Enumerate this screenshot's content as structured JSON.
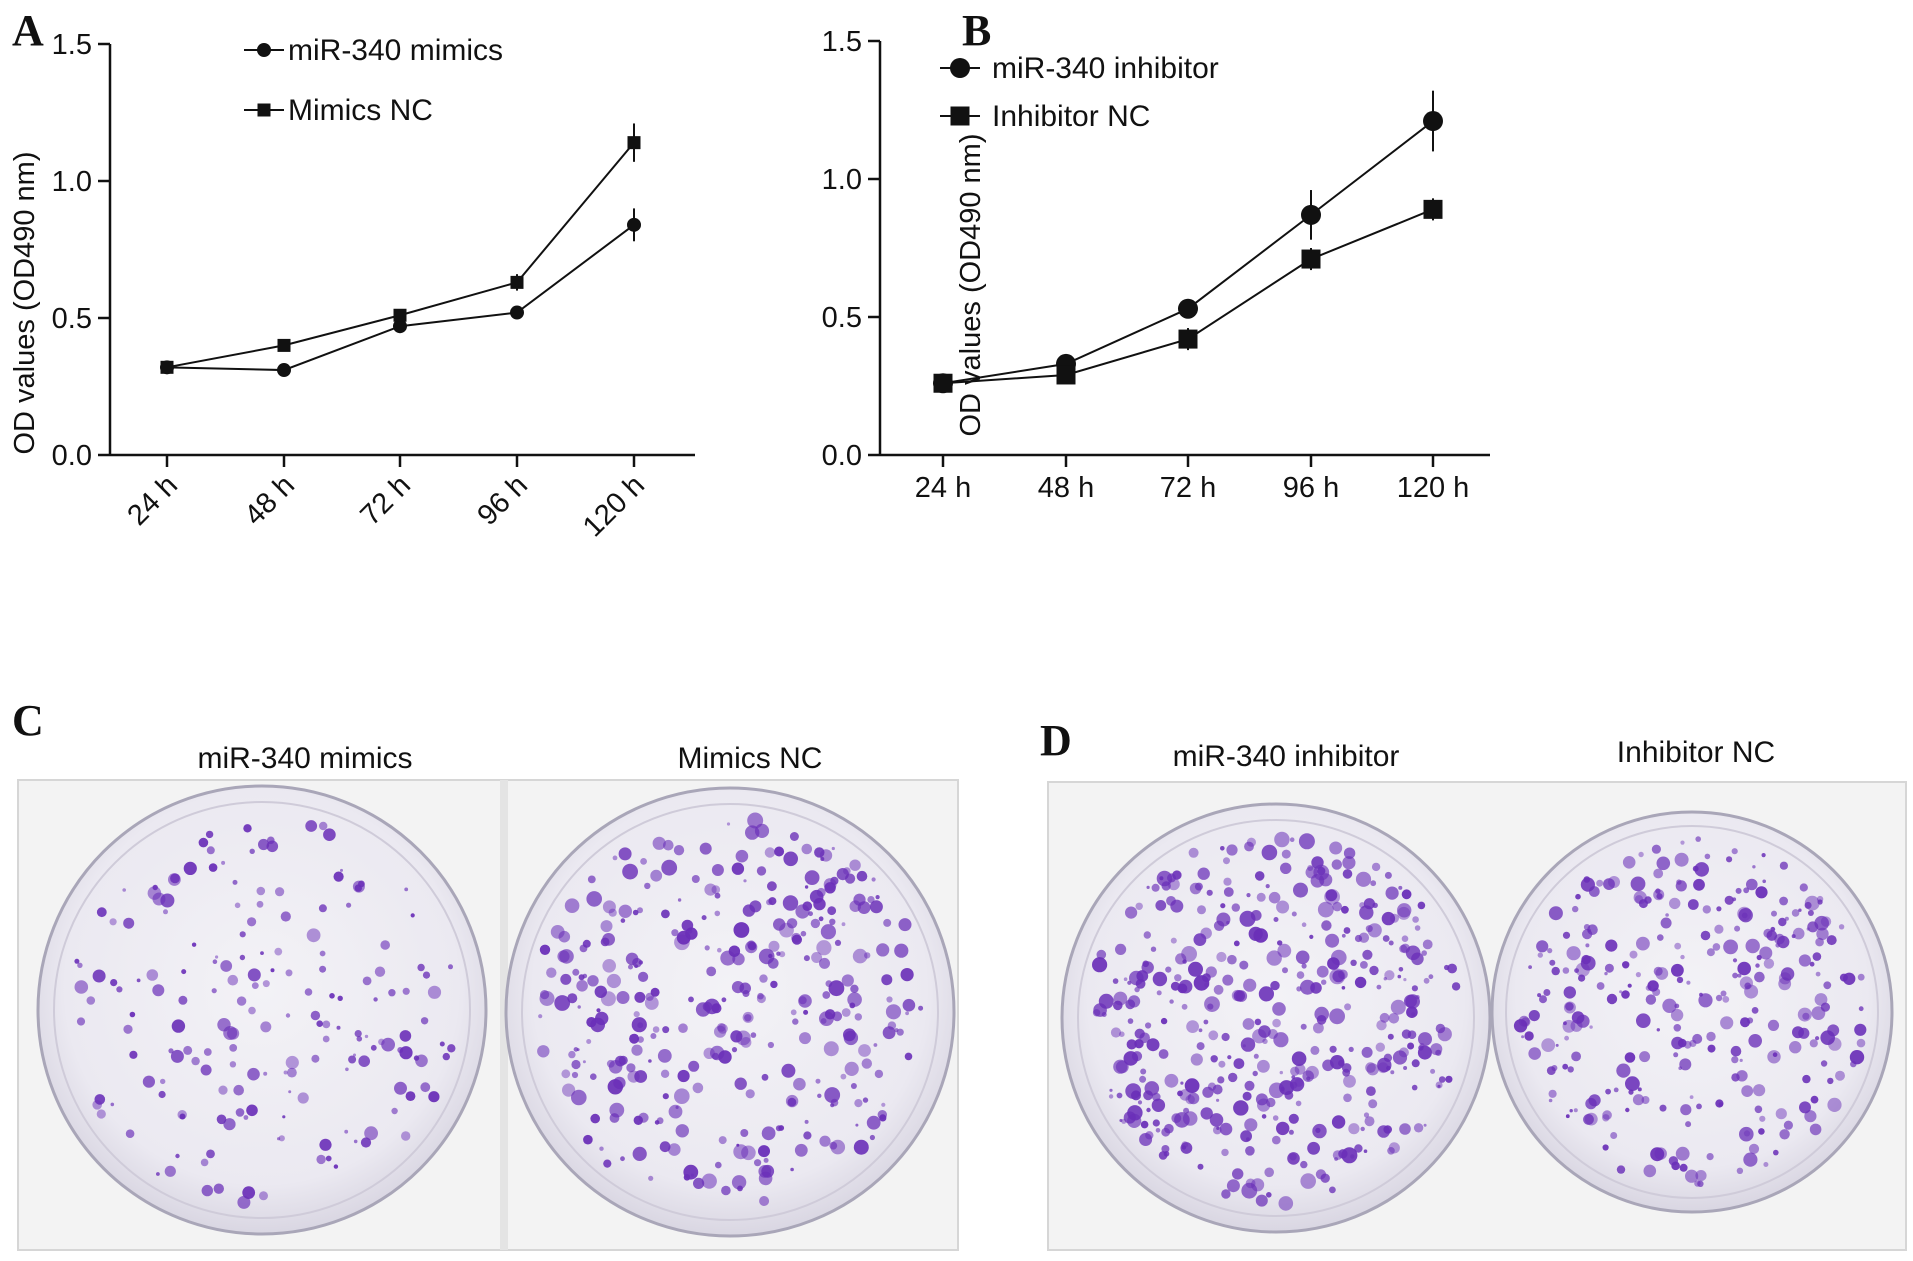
{
  "panels": {
    "a": {
      "letter": "A"
    },
    "b": {
      "letter": "B"
    },
    "c": {
      "letter": "C",
      "labels": [
        "miR-340 mimics",
        "Mimics NC"
      ]
    },
    "d": {
      "letter": "D",
      "labels": [
        "miR-340 inhibitor",
        "Inhibitor NC"
      ]
    }
  },
  "colors": {
    "colony": "#6a2fb8",
    "dish_background": "#efedf3",
    "plate_background": "#f4f4f4"
  },
  "chart_data": [
    {
      "type": "line",
      "panel": "A",
      "categories": [
        "24 h",
        "48 h",
        "72 h",
        "96 h",
        "120 h"
      ],
      "ylabel": "OD values (OD490 nm)",
      "ylim": [
        0.0,
        1.5
      ],
      "yticks": [
        "0.0",
        "0.5",
        "1.0",
        "1.5"
      ],
      "xtick_rotation": "rotated",
      "legend_placement": "top-left",
      "grid": false,
      "series": [
        {
          "name": "miR-340 mimics",
          "marker": "circle",
          "values": [
            0.32,
            0.31,
            0.47,
            0.52,
            0.84
          ],
          "errors": [
            0.01,
            0.01,
            0.01,
            0.01,
            0.06
          ]
        },
        {
          "name": "Mimics NC",
          "marker": "square",
          "values": [
            0.32,
            0.4,
            0.51,
            0.63,
            1.14
          ],
          "errors": [
            0.01,
            0.01,
            0.02,
            0.03,
            0.07
          ]
        }
      ]
    },
    {
      "type": "line",
      "panel": "B",
      "categories": [
        "24 h",
        "48 h",
        "72 h",
        "96 h",
        "120 h"
      ],
      "ylabel": "OD values (OD490 nm)",
      "ylim": [
        0.0,
        1.5
      ],
      "yticks": [
        "0.0",
        "0.5",
        "1.0",
        "1.5"
      ],
      "xtick_rotation": "horizontal",
      "legend_placement": "top-left",
      "grid": false,
      "series": [
        {
          "name": "miR-340 inhibitor",
          "marker": "circle",
          "values": [
            0.26,
            0.33,
            0.53,
            0.87,
            1.21
          ],
          "errors": [
            0.03,
            0.01,
            0.03,
            0.09,
            0.11
          ]
        },
        {
          "name": "Inhibitor NC",
          "marker": "square",
          "values": [
            0.26,
            0.29,
            0.42,
            0.71,
            0.89
          ],
          "errors": [
            0.03,
            0.01,
            0.04,
            0.04,
            0.04
          ]
        }
      ]
    }
  ]
}
